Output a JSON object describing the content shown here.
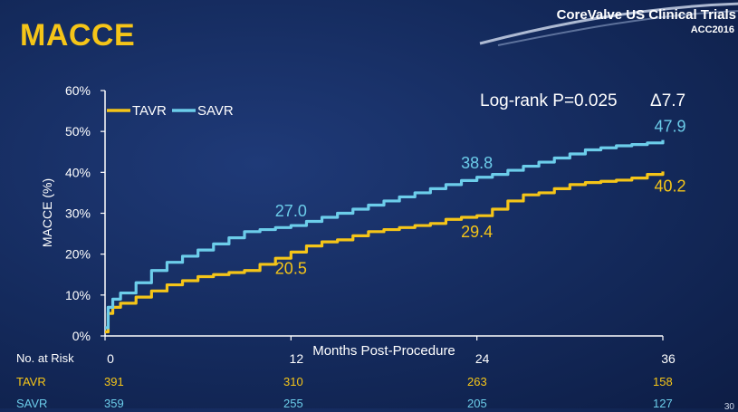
{
  "slide": {
    "title": "MACCE",
    "brand_title": "CoreValve US Clinical Trials",
    "brand_subtitle": "ACC2016",
    "page_number": "30"
  },
  "colors": {
    "tavr": "#f5c518",
    "savr": "#6ccdea",
    "title": "#f5c518",
    "background": "#142a5c"
  },
  "chart_data": {
    "type": "line",
    "title": "",
    "xlabel": "Months Post-Procedure",
    "ylabel": "MACCE (%)",
    "xlim": [
      0,
      36
    ],
    "ylim": [
      0,
      60
    ],
    "xticks": [
      0,
      12,
      24,
      36
    ],
    "yticks": [
      "0%",
      "10%",
      "20%",
      "30%",
      "40%",
      "50%",
      "60%"
    ],
    "legend": [
      "TAVR",
      "SAVR"
    ],
    "legend_position": "top-left",
    "grid": false,
    "annotations": {
      "logrank": "Log-rank P=0.025",
      "delta": "Δ7.7"
    },
    "series": [
      {
        "name": "TAVR",
        "color": "#f5c518",
        "x": [
          0,
          0.2,
          0.5,
          1,
          2,
          3,
          4,
          5,
          6,
          7,
          8,
          9,
          10,
          11,
          12,
          13,
          14,
          15,
          16,
          17,
          18,
          19,
          20,
          21,
          22,
          23,
          24,
          25,
          26,
          27,
          28,
          29,
          30,
          31,
          32,
          33,
          34,
          35,
          36
        ],
        "y": [
          1,
          5.5,
          7,
          8,
          9.5,
          11,
          12.5,
          13.5,
          14.5,
          15,
          15.5,
          16,
          17.5,
          19,
          20.5,
          22,
          23,
          23.5,
          24.5,
          25.5,
          26,
          26.5,
          27,
          27.5,
          28.5,
          29,
          29.4,
          31,
          33,
          34.5,
          35,
          36,
          37,
          37.5,
          37.8,
          38.1,
          38.6,
          39.5,
          40.2
        ],
        "labels": [
          {
            "x": 12,
            "y": 20.5,
            "text": "20.5"
          },
          {
            "x": 24,
            "y": 29.4,
            "text": "29.4"
          },
          {
            "x": 36,
            "y": 40.2,
            "text": "40.2"
          }
        ]
      },
      {
        "name": "SAVR",
        "color": "#6ccdea",
        "x": [
          0,
          0.2,
          0.5,
          1,
          2,
          3,
          4,
          5,
          6,
          7,
          8,
          9,
          10,
          11,
          12,
          13,
          14,
          15,
          16,
          17,
          18,
          19,
          20,
          21,
          22,
          23,
          24,
          25,
          26,
          27,
          28,
          29,
          30,
          31,
          32,
          33,
          34,
          35,
          36
        ],
        "y": [
          2,
          7,
          9,
          10.5,
          13,
          16,
          18,
          19.5,
          21,
          22.5,
          24,
          25.5,
          26,
          26.5,
          27,
          28,
          29,
          30,
          31,
          32,
          33,
          34,
          35,
          36,
          37,
          38,
          38.8,
          39.5,
          40.5,
          41.5,
          42.5,
          43.5,
          44.5,
          45.5,
          46,
          46.5,
          46.8,
          47.2,
          47.9
        ],
        "labels": [
          {
            "x": 12,
            "y": 27.0,
            "text": "27.0"
          },
          {
            "x": 24,
            "y": 38.8,
            "text": "38.8"
          },
          {
            "x": 36,
            "y": 47.9,
            "text": "47.9"
          }
        ]
      }
    ]
  },
  "risk_table": {
    "header": "No. at Risk",
    "rows": [
      {
        "name": "TAVR",
        "values": [
          "391",
          "310",
          "263",
          "158"
        ]
      },
      {
        "name": "SAVR",
        "values": [
          "359",
          "255",
          "205",
          "127"
        ]
      }
    ]
  }
}
